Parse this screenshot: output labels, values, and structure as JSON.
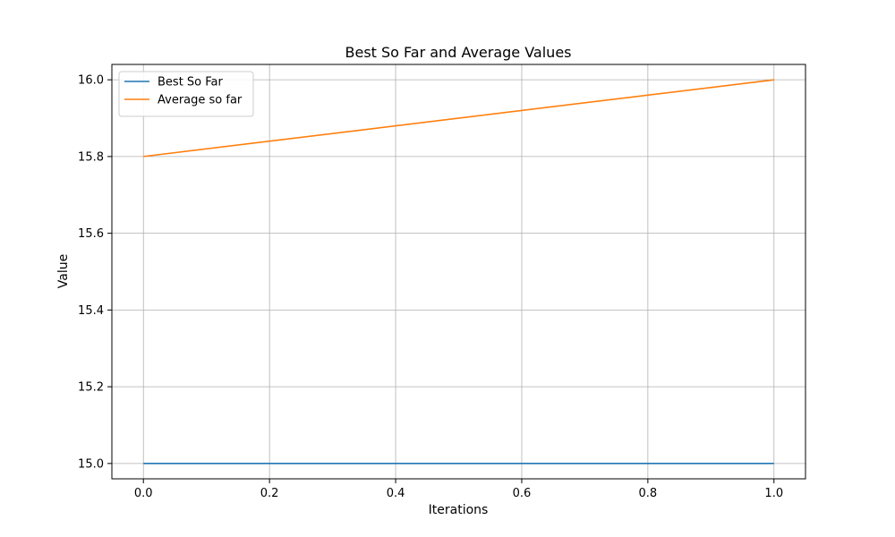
{
  "chart_data": {
    "type": "line",
    "title": "Best So Far and Average Values",
    "xlabel": "Iterations",
    "ylabel": "Value",
    "xlim": [
      -0.05,
      1.05
    ],
    "ylim": [
      14.96,
      16.04
    ],
    "x_ticks": [
      0.0,
      0.2,
      0.4,
      0.6,
      0.8,
      1.0
    ],
    "y_ticks": [
      15.0,
      15.2,
      15.4,
      15.6,
      15.8,
      16.0
    ],
    "x_tick_labels": [
      "0.0",
      "0.2",
      "0.4",
      "0.6",
      "0.8",
      "1.0"
    ],
    "y_tick_labels": [
      "15.0",
      "15.2",
      "15.4",
      "15.6",
      "15.8",
      "16.0"
    ],
    "grid": true,
    "legend_position": "top-left",
    "series": [
      {
        "name": "Best So Far",
        "color": "#1f77b4",
        "x": [
          0,
          1
        ],
        "y": [
          15.0,
          15.0
        ]
      },
      {
        "name": "Average so far",
        "color": "#ff7f0e",
        "x": [
          0,
          1
        ],
        "y": [
          15.8,
          16.0
        ]
      }
    ]
  }
}
